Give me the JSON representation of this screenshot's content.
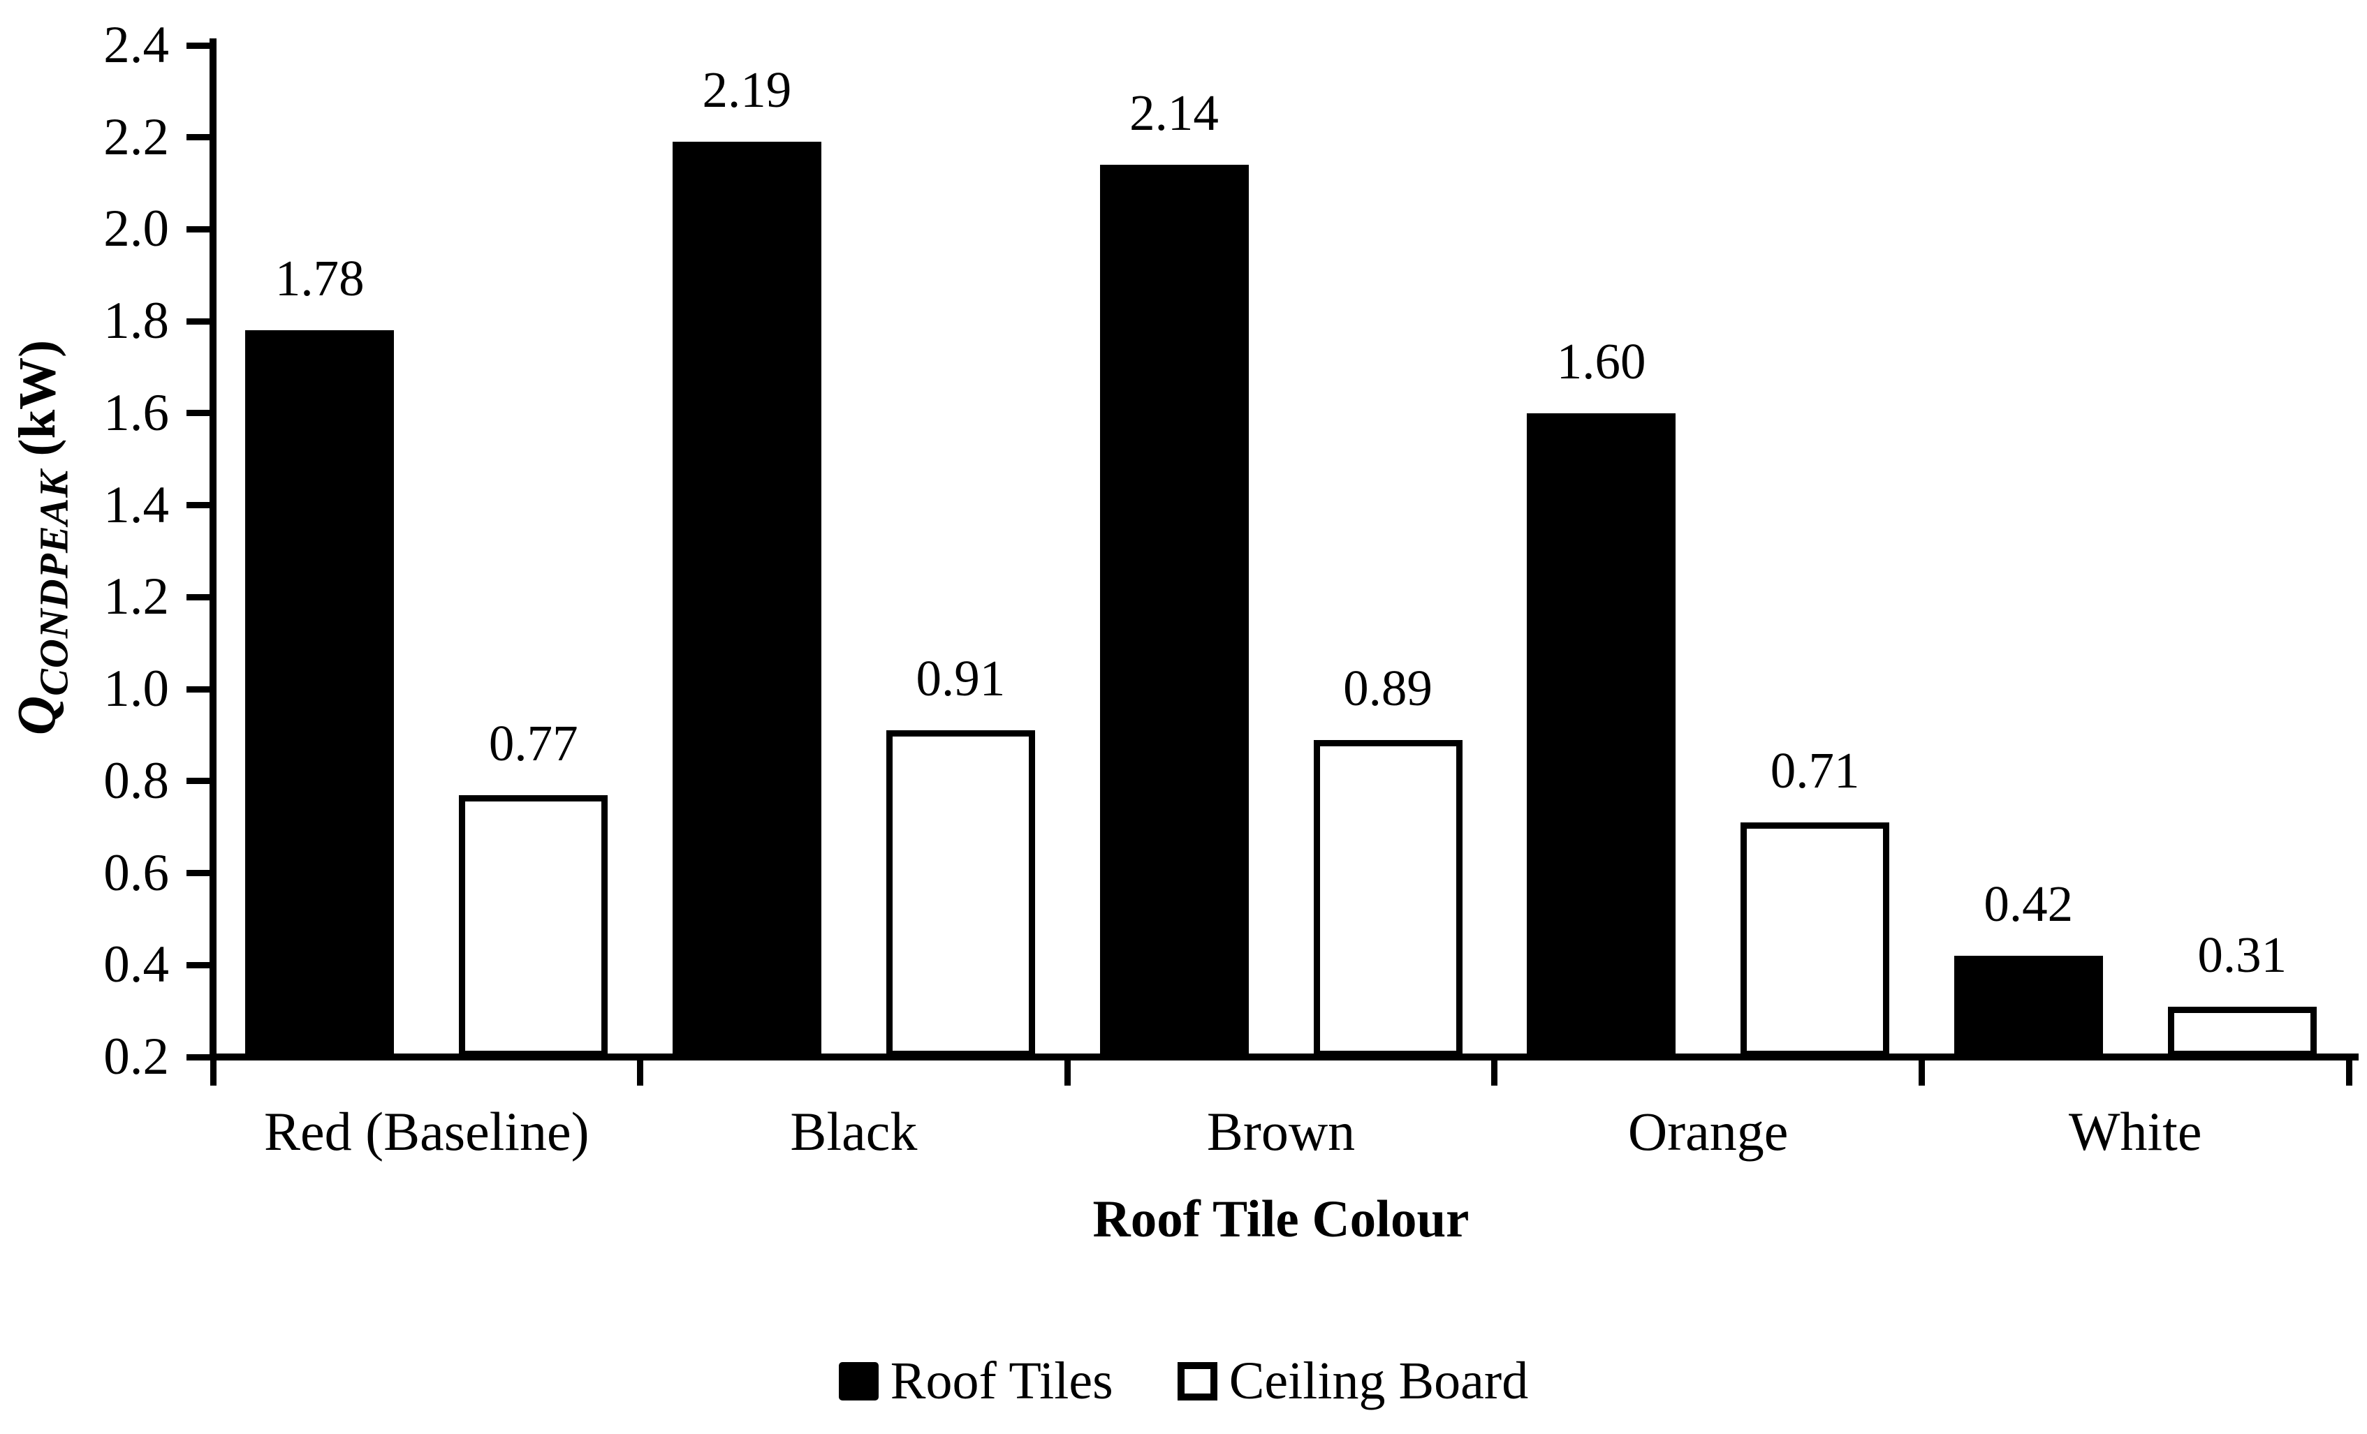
{
  "chart_data": {
    "type": "bar",
    "title": "",
    "categories": [
      "Red (Baseline)",
      "Black",
      "Brown",
      "Orange",
      "White"
    ],
    "series": [
      {
        "name": "Roof Tiles",
        "style": "filled",
        "fill": "#000000",
        "values": [
          1.78,
          2.19,
          2.14,
          1.6,
          0.42
        ],
        "labels": [
          "1.78",
          "2.19",
          "2.14",
          "1.60",
          "0.42"
        ]
      },
      {
        "name": "Ceiling Board",
        "style": "hollow",
        "fill": "#ffffff",
        "values": [
          0.77,
          0.91,
          0.89,
          0.71,
          0.31
        ],
        "labels": [
          "0.77",
          "0.91",
          "0.89",
          "0.71",
          "0.31"
        ]
      }
    ],
    "xlabel": "Roof Tile Colour",
    "ylabel": {
      "symbol": "Q",
      "subscript": "CONDPEAK",
      "unit": "(kW)"
    },
    "y_axis": {
      "min": 0.2,
      "max": 2.4,
      "step": 0.2,
      "tick_labels": [
        "0.2",
        "0.4",
        "0.6",
        "0.8",
        "1.0",
        "1.2",
        "1.4",
        "1.6",
        "1.8",
        "2.0",
        "2.2",
        "2.4"
      ]
    },
    "legend": {
      "position": "bottom",
      "entries": [
        "Roof Tiles",
        "Ceiling Board"
      ]
    },
    "grid": false,
    "colors": {
      "axis": "#000000",
      "background": "#ffffff",
      "bar_filled": "#000000",
      "bar_hollow": "#ffffff"
    }
  }
}
